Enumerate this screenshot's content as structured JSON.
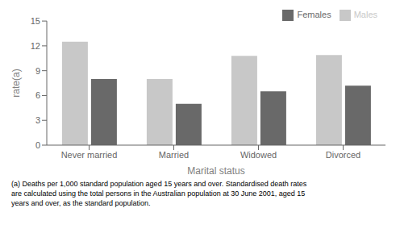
{
  "chart_data": {
    "type": "bar",
    "categories": [
      "Never married",
      "Married",
      "Widowed",
      "Divorced"
    ],
    "series": [
      {
        "name": "Males",
        "color": "#c8c8c8",
        "values": [
          12.5,
          8.0,
          10.8,
          10.9
        ]
      },
      {
        "name": "Females",
        "color": "#696969",
        "values": [
          8.0,
          5.0,
          6.5,
          7.2
        ]
      }
    ],
    "xlabel": "Marital status",
    "ylabel": "rate(a)",
    "ylim": [
      0,
      15
    ],
    "yticks": [
      0,
      3,
      6,
      9,
      12,
      15
    ],
    "grid": false,
    "legend": "upper right",
    "annotations": [
      "(a) Deaths per 1,000 standard population aged 15 years and over. Standardised death rates\nare calculated using the total persons in the Australian population at 30 June 2001, aged 15\nyears and over, as the standard population."
    ]
  }
}
